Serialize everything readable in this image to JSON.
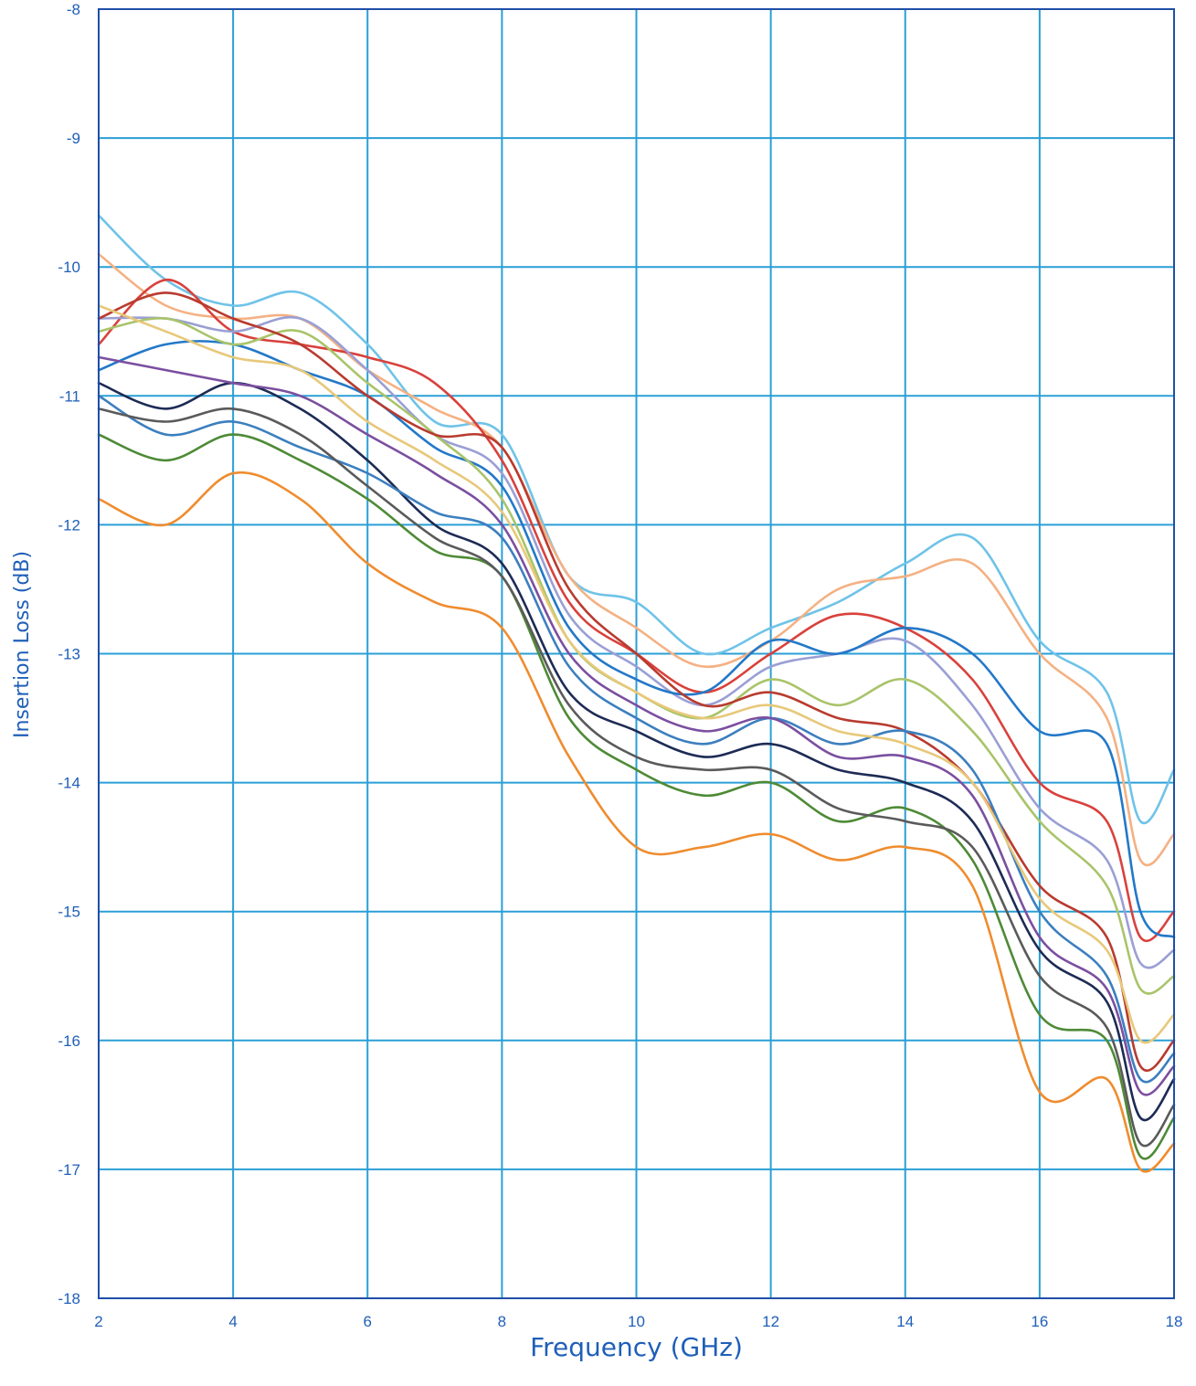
{
  "chart_data": {
    "type": "line",
    "xlabel": "Frequency (GHz)",
    "ylabel": "Insertion Loss (dB)",
    "xlim": [
      2,
      18
    ],
    "ylim": [
      -18,
      -8
    ],
    "xticks": [
      2,
      4,
      6,
      8,
      10,
      12,
      14,
      16,
      18
    ],
    "yticks": [
      -8,
      -9,
      -10,
      -11,
      -12,
      -13,
      -14,
      -15,
      -16,
      -17,
      -18
    ],
    "grid": true,
    "legend": "none",
    "colors": {
      "axis_text": "#1f5fb8",
      "grid": "#2a9fd6",
      "frame": "#1f4fa8"
    },
    "series": [
      {
        "color": "#6fc3e8",
        "x": [
          2,
          3,
          4,
          5,
          6,
          7,
          8,
          9,
          10,
          11,
          12,
          13,
          14,
          15,
          16,
          17,
          17.5,
          18
        ],
        "y": [
          -9.6,
          -10.1,
          -10.3,
          -10.2,
          -10.6,
          -11.2,
          -11.3,
          -12.4,
          -12.6,
          -13.0,
          -12.8,
          -12.6,
          -12.3,
          -12.1,
          -12.9,
          -13.3,
          -14.3,
          -13.9
        ]
      },
      {
        "color": "#f4b183",
        "x": [
          2,
          3,
          4,
          5,
          6,
          7,
          8,
          9,
          10,
          11,
          12,
          13,
          14,
          15,
          16,
          17,
          17.5,
          18
        ],
        "y": [
          -9.9,
          -10.3,
          -10.4,
          -10.4,
          -10.8,
          -11.1,
          -11.4,
          -12.4,
          -12.8,
          -13.1,
          -12.9,
          -12.5,
          -12.4,
          -12.3,
          -13.0,
          -13.5,
          -14.6,
          -14.4
        ]
      },
      {
        "color": "#d9413c",
        "x": [
          2,
          3,
          4,
          5,
          6,
          7,
          8,
          9,
          10,
          11,
          12,
          13,
          14,
          15,
          16,
          17,
          17.5,
          18
        ],
        "y": [
          -10.6,
          -10.1,
          -10.5,
          -10.6,
          -10.7,
          -10.9,
          -11.5,
          -12.6,
          -13.0,
          -13.3,
          -13.0,
          -12.7,
          -12.8,
          -13.2,
          -14.0,
          -14.3,
          -15.2,
          -15.0
        ]
      },
      {
        "color": "#9a9fd4",
        "x": [
          2,
          3,
          4,
          5,
          6,
          7,
          8,
          9,
          10,
          11,
          12,
          13,
          14,
          15,
          16,
          17,
          17.5,
          18
        ],
        "y": [
          -10.4,
          -10.4,
          -10.5,
          -10.4,
          -10.8,
          -11.3,
          -11.6,
          -12.7,
          -13.1,
          -13.4,
          -13.1,
          -13.0,
          -12.9,
          -13.4,
          -14.2,
          -14.6,
          -15.4,
          -15.3
        ]
      },
      {
        "color": "#2378c8",
        "x": [
          2,
          3,
          4,
          5,
          6,
          7,
          8,
          9,
          10,
          11,
          12,
          13,
          14,
          15,
          16,
          17,
          17.5,
          18
        ],
        "y": [
          -10.8,
          -10.6,
          -10.6,
          -10.8,
          -11.0,
          -11.4,
          -11.7,
          -12.8,
          -13.2,
          -13.3,
          -12.9,
          -13.0,
          -12.8,
          -13.0,
          -13.6,
          -13.7,
          -15.0,
          -15.2
        ]
      },
      {
        "color": "#a9c46a",
        "x": [
          2,
          3,
          4,
          5,
          6,
          7,
          8,
          9,
          10,
          11,
          12,
          13,
          14,
          15,
          16,
          17,
          17.5,
          18
        ],
        "y": [
          -10.5,
          -10.4,
          -10.6,
          -10.5,
          -10.9,
          -11.3,
          -11.8,
          -12.9,
          -13.3,
          -13.5,
          -13.2,
          -13.4,
          -13.2,
          -13.6,
          -14.3,
          -14.8,
          -15.6,
          -15.5
        ]
      },
      {
        "color": "#1d2b55",
        "x": [
          2,
          3,
          4,
          5,
          6,
          7,
          8,
          9,
          10,
          11,
          12,
          13,
          14,
          15,
          16,
          17,
          17.5,
          18
        ],
        "y": [
          -10.9,
          -11.1,
          -10.9,
          -11.1,
          -11.5,
          -12.0,
          -12.3,
          -13.3,
          -13.6,
          -13.8,
          -13.7,
          -13.9,
          -14.0,
          -14.3,
          -15.3,
          -15.7,
          -16.6,
          -16.3
        ]
      },
      {
        "color": "#b83b2f",
        "x": [
          2,
          3,
          4,
          5,
          6,
          7,
          8,
          9,
          10,
          11,
          12,
          13,
          14,
          15,
          16,
          17,
          17.5,
          18
        ],
        "y": [
          -10.4,
          -10.2,
          -10.4,
          -10.6,
          -11.0,
          -11.3,
          -11.4,
          -12.5,
          -13.0,
          -13.4,
          -13.3,
          -13.5,
          -13.6,
          -14.0,
          -14.8,
          -15.2,
          -16.2,
          -16.0
        ]
      },
      {
        "color": "#ef8c2e",
        "x": [
          2,
          3,
          4,
          5,
          6,
          7,
          8,
          9,
          10,
          11,
          12,
          13,
          14,
          15,
          16,
          17,
          17.5,
          18
        ],
        "y": [
          -11.8,
          -12.0,
          -11.6,
          -11.8,
          -12.3,
          -12.6,
          -12.8,
          -13.8,
          -14.5,
          -14.5,
          -14.4,
          -14.6,
          -14.5,
          -14.8,
          -16.4,
          -16.3,
          -17.0,
          -16.8
        ]
      },
      {
        "color": "#4e8a36",
        "x": [
          2,
          3,
          4,
          5,
          6,
          7,
          8,
          9,
          10,
          11,
          12,
          13,
          14,
          15,
          16,
          17,
          17.5,
          18
        ],
        "y": [
          -11.3,
          -11.5,
          -11.3,
          -11.5,
          -11.8,
          -12.2,
          -12.4,
          -13.5,
          -13.9,
          -14.1,
          -14.0,
          -14.3,
          -14.2,
          -14.6,
          -15.8,
          -16.0,
          -16.9,
          -16.6
        ]
      },
      {
        "color": "#3c7fbf",
        "x": [
          2,
          3,
          4,
          5,
          6,
          7,
          8,
          9,
          10,
          11,
          12,
          13,
          14,
          15,
          16,
          17,
          17.5,
          18
        ],
        "y": [
          -11.0,
          -11.3,
          -11.2,
          -11.4,
          -11.6,
          -11.9,
          -12.1,
          -13.1,
          -13.5,
          -13.7,
          -13.5,
          -13.7,
          -13.6,
          -13.9,
          -15.0,
          -15.5,
          -16.3,
          -16.1
        ]
      },
      {
        "color": "#7b4fa0",
        "x": [
          2,
          3,
          4,
          5,
          6,
          7,
          8,
          9,
          10,
          11,
          12,
          13,
          14,
          15,
          16,
          17,
          17.5,
          18
        ],
        "y": [
          -10.7,
          -10.8,
          -10.9,
          -11.0,
          -11.3,
          -11.6,
          -12.0,
          -13.0,
          -13.4,
          -13.6,
          -13.5,
          -13.8,
          -13.8,
          -14.1,
          -15.2,
          -15.6,
          -16.4,
          -16.2
        ]
      },
      {
        "color": "#e8c87a",
        "x": [
          2,
          3,
          4,
          5,
          6,
          7,
          8,
          9,
          10,
          11,
          12,
          13,
          14,
          15,
          16,
          17,
          17.5,
          18
        ],
        "y": [
          -10.3,
          -10.5,
          -10.7,
          -10.8,
          -11.2,
          -11.5,
          -11.9,
          -12.9,
          -13.3,
          -13.5,
          -13.4,
          -13.6,
          -13.7,
          -14.0,
          -14.9,
          -15.3,
          -16.0,
          -15.8
        ]
      },
      {
        "color": "#5a5a5a",
        "x": [
          2,
          3,
          4,
          5,
          6,
          7,
          8,
          9,
          10,
          11,
          12,
          13,
          14,
          15,
          16,
          17,
          17.5,
          18
        ],
        "y": [
          -11.1,
          -11.2,
          -11.1,
          -11.3,
          -11.7,
          -12.1,
          -12.4,
          -13.4,
          -13.8,
          -13.9,
          -13.9,
          -14.2,
          -14.3,
          -14.5,
          -15.5,
          -15.9,
          -16.8,
          -16.5
        ]
      }
    ]
  }
}
